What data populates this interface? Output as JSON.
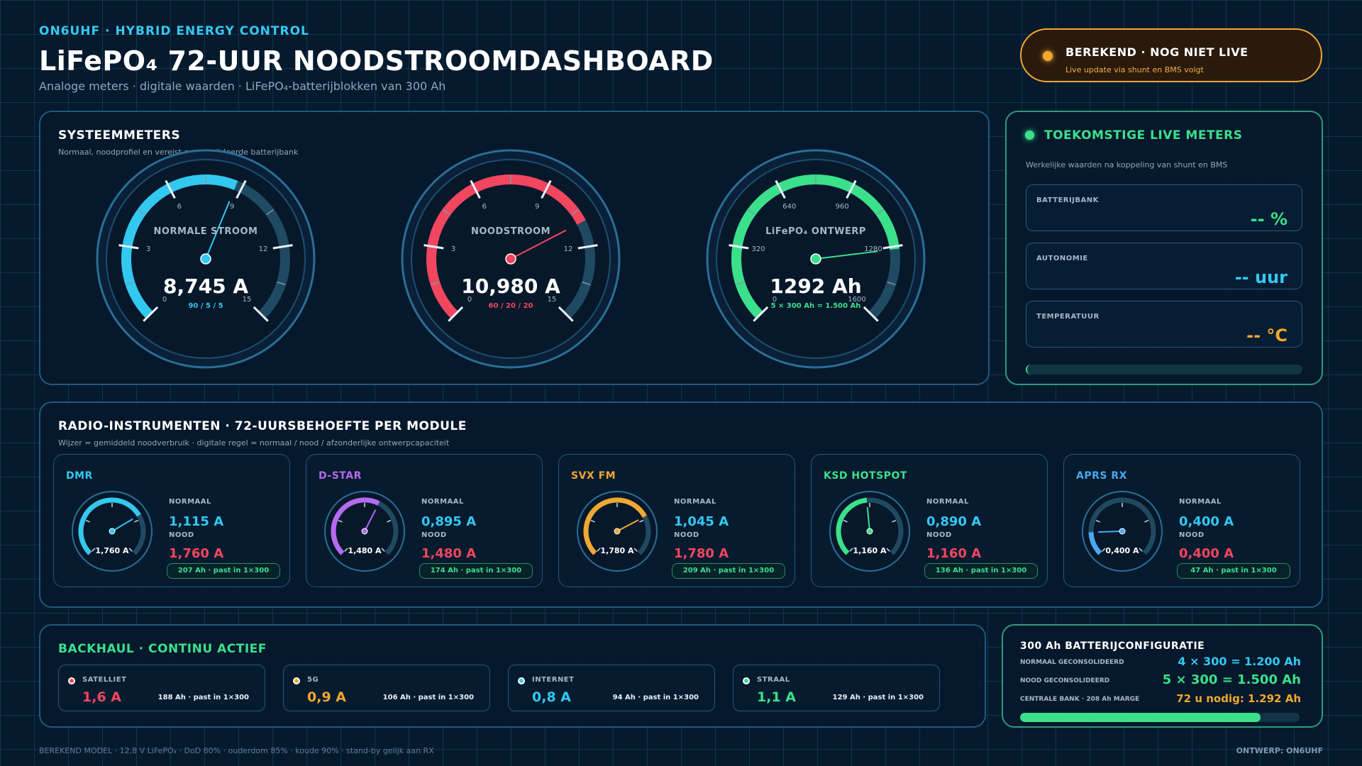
{
  "header": {
    "brand": "ON6UHF  ·  HYBRID ENERGY CONTROL",
    "title": "LiFePO₄ 72-UUR NOODSTROOMDASHBOARD",
    "subtitle": "Analoge meters  ·  digitale waarden  ·  LiFePO₄-batterijblokken van 300 Ah",
    "status_title": "BEREKEND  ·  NOG NIET LIVE",
    "status_sub": "Live update via shunt en BMS volgt"
  },
  "system": {
    "title": "SYSTEEMMETERS",
    "subtitle": "Normaal, noodprofiel en vereist geconsolideerde batterijbank",
    "gauges": [
      {
        "label": "NORMALE STROOM",
        "value": "8,745 A",
        "sub": "90 / 5 / 5",
        "ticks": [
          "0",
          "3",
          "6",
          "9",
          "12",
          "15"
        ],
        "max": 15,
        "reading": 8.745,
        "color": "#33c8f0"
      },
      {
        "label": "NOODSTROOM",
        "value": "10,980 A",
        "sub": "60 / 20 / 20",
        "ticks": [
          "0",
          "3",
          "6",
          "9",
          "12",
          "15"
        ],
        "max": 15,
        "reading": 10.98,
        "color": "#f2465f"
      },
      {
        "label": "LiFePO₄ ONTWERP",
        "value": "1292 Ah",
        "sub": "5 × 300 Ah = 1.500 Ah",
        "ticks": [
          "0",
          "320",
          "640",
          "960",
          "1280",
          "1600"
        ],
        "max": 1600,
        "reading": 1292,
        "color": "#3be08b"
      }
    ]
  },
  "live": {
    "title": "TOEKOMSTIGE LIVE METERS",
    "subtitle": "Werkelijke waarden na koppeling van shunt en BMS",
    "items": [
      {
        "label": "BATTERIJBANK",
        "value": "-- %",
        "color": "#3be08b"
      },
      {
        "label": "AUTONOMIE",
        "value": "-- uur",
        "color": "#33c8f0"
      },
      {
        "label": "TEMPERATUUR",
        "value": "-- °C",
        "color": "#f0a830"
      }
    ]
  },
  "radio": {
    "title": "RADIO-INSTRUMENTEN  ·  72-UURSBEHOEFTE PER MODULE",
    "subtitle": "Wijzer = gemiddeld noodverbruik  ·  digitale regel = normaal / nood / afzonderlijke ontwerpcapaciteit",
    "normal_label": "NORMAAL",
    "nood_label": "NOOD",
    "modules": [
      {
        "name": "DMR",
        "color": "#33c8f0",
        "gauge": "1,760 A",
        "normal": "1,115 A",
        "nood": "1,760 A",
        "cap": "207 Ah · past in 1×300",
        "fill": 0.72
      },
      {
        "name": "D-STAR",
        "color": "#b66af0",
        "gauge": "1,480 A",
        "normal": "0,895 A",
        "nood": "1,480 A",
        "cap": "174 Ah · past in 1×300",
        "fill": 0.6
      },
      {
        "name": "SVX FM",
        "color": "#f0a830",
        "gauge": "1,780 A",
        "normal": "1,045 A",
        "nood": "1,780 A",
        "cap": "209 Ah · past in 1×300",
        "fill": 0.73
      },
      {
        "name": "KSD HOTSPOT",
        "color": "#3be08b",
        "gauge": "1,160 A",
        "normal": "0,890 A",
        "nood": "1,160 A",
        "cap": "136 Ah · past in 1×300",
        "fill": 0.48
      },
      {
        "name": "APRS RX",
        "color": "#4aa8f0",
        "gauge": "0,400 A",
        "normal": "0,400 A",
        "nood": "0,400 A",
        "cap": "47 Ah · past in 1×300",
        "fill": 0.16
      }
    ]
  },
  "backhaul": {
    "title": "BACKHAUL  ·  CONTINU ACTIEF",
    "items": [
      {
        "name": "SATELLIET",
        "value": "1,6 A",
        "ah": "188 Ah · past in 1×300",
        "color": "#f2465f"
      },
      {
        "name": "5G",
        "value": "0,9 A",
        "ah": "106 Ah · past in 1×300",
        "color": "#f0a830"
      },
      {
        "name": "INTERNET",
        "value": "0,8 A",
        "ah": "94 Ah · past in 1×300",
        "color": "#33c8f0"
      },
      {
        "name": "STRAAL",
        "value": "1,1 A",
        "ah": "129 Ah · past in 1×300",
        "color": "#3be08b"
      }
    ]
  },
  "config": {
    "title": "300 Ah BATTERIJCONFIGURATIE",
    "rows": [
      {
        "label": "NORMAAL GECONSOLIDEERD",
        "value": "4 × 300 = 1.200 Ah",
        "color": "#33c8f0"
      },
      {
        "label": "NOOD GECONSOLIDEERD",
        "value": "5 × 300 = 1.500 Ah",
        "color": "#3be08b"
      },
      {
        "label": "CENTRALE BANK · 208 Ah MARGE",
        "value": "72 u nodig: 1.292 Ah",
        "color": "#f0a830"
      }
    ],
    "bar_fraction": 0.86
  },
  "footer": {
    "left": "BEREKEND MODEL  ·  12,8 V LiFePO₄  ·  DoD 80%  ·  ouderdom 85%  ·  koude 90%  ·  stand-by gelijk aan RX",
    "right": "ONTWERP: ON6UHF"
  }
}
